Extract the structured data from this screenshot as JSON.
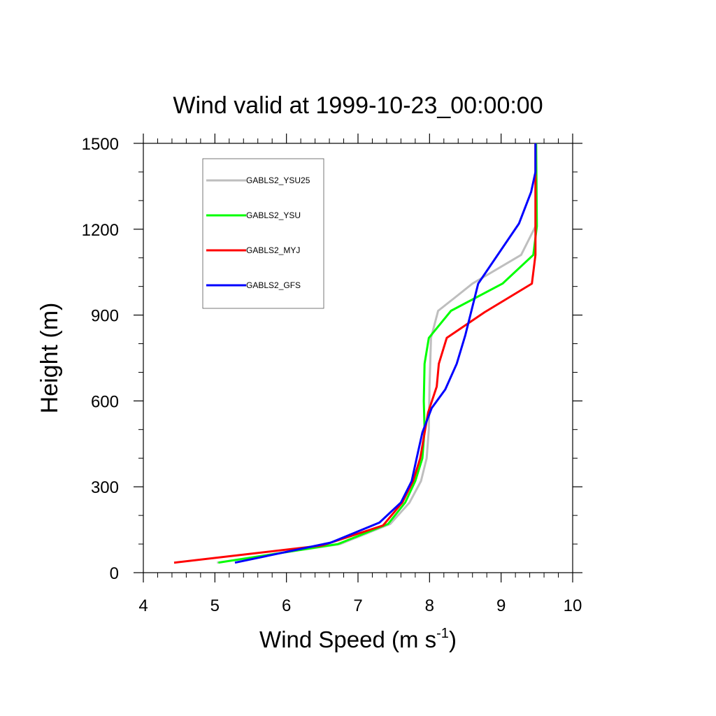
{
  "chart_data": {
    "type": "line",
    "title": "Wind valid at 1999-10-23_00:00:00",
    "xlabel": "Wind Speed (m s",
    "xlabel_superscript": "-1",
    "xlabel_suffix": ")",
    "ylabel": "Height (m)",
    "xlim": [
      4,
      10
    ],
    "ylim": [
      0,
      1500
    ],
    "xticks": [
      4,
      5,
      6,
      7,
      8,
      9,
      10
    ],
    "yticks": [
      0,
      300,
      600,
      900,
      1200,
      1500
    ],
    "legend_placement": "top-left",
    "series": [
      {
        "name": "GABLS2_YSU25",
        "color": "#bebebe",
        "points": [
          [
            5.03,
            35
          ],
          [
            6.75,
            100
          ],
          [
            7.45,
            170
          ],
          [
            7.72,
            245
          ],
          [
            7.88,
            320
          ],
          [
            7.96,
            400
          ],
          [
            7.99,
            500
          ],
          [
            8.0,
            650
          ],
          [
            8.02,
            820
          ],
          [
            8.12,
            915
          ],
          [
            8.35,
            960
          ],
          [
            8.6,
            1010
          ],
          [
            9.28,
            1110
          ],
          [
            9.48,
            1210
          ],
          [
            9.48,
            1300
          ],
          [
            9.48,
            1500
          ]
        ]
      },
      {
        "name": "GABLS2_YSU",
        "color": "#00ff00",
        "points": [
          [
            5.05,
            35
          ],
          [
            6.72,
            100
          ],
          [
            7.42,
            170
          ],
          [
            7.66,
            245
          ],
          [
            7.8,
            320
          ],
          [
            7.9,
            400
          ],
          [
            7.93,
            500
          ],
          [
            7.92,
            600
          ],
          [
            7.93,
            730
          ],
          [
            7.99,
            820
          ],
          [
            8.3,
            915
          ],
          [
            9.02,
            1010
          ],
          [
            9.45,
            1110
          ],
          [
            9.5,
            1210
          ],
          [
            9.49,
            1500
          ]
        ]
      },
      {
        "name": "GABLS2_MYJ",
        "color": "#ff0000",
        "points": [
          [
            4.43,
            35
          ],
          [
            6.5,
            95
          ],
          [
            7.35,
            165
          ],
          [
            7.62,
            245
          ],
          [
            7.77,
            320
          ],
          [
            7.87,
            400
          ],
          [
            7.98,
            560
          ],
          [
            8.1,
            650
          ],
          [
            8.13,
            730
          ],
          [
            8.24,
            820
          ],
          [
            8.77,
            910
          ],
          [
            9.43,
            1010
          ],
          [
            9.48,
            1110
          ],
          [
            9.48,
            1210
          ],
          [
            9.48,
            1500
          ]
        ]
      },
      {
        "name": "GABLS2_GFS",
        "color": "#0000ff",
        "points": [
          [
            5.28,
            35
          ],
          [
            6.62,
            105
          ],
          [
            7.3,
            175
          ],
          [
            7.6,
            245
          ],
          [
            7.75,
            320
          ],
          [
            7.82,
            400
          ],
          [
            7.9,
            490
          ],
          [
            8.03,
            575
          ],
          [
            8.22,
            640
          ],
          [
            8.38,
            730
          ],
          [
            8.5,
            830
          ],
          [
            8.58,
            910
          ],
          [
            8.68,
            1010
          ],
          [
            9.25,
            1220
          ],
          [
            9.42,
            1330
          ],
          [
            9.48,
            1400
          ],
          [
            9.48,
            1500
          ]
        ]
      }
    ]
  }
}
